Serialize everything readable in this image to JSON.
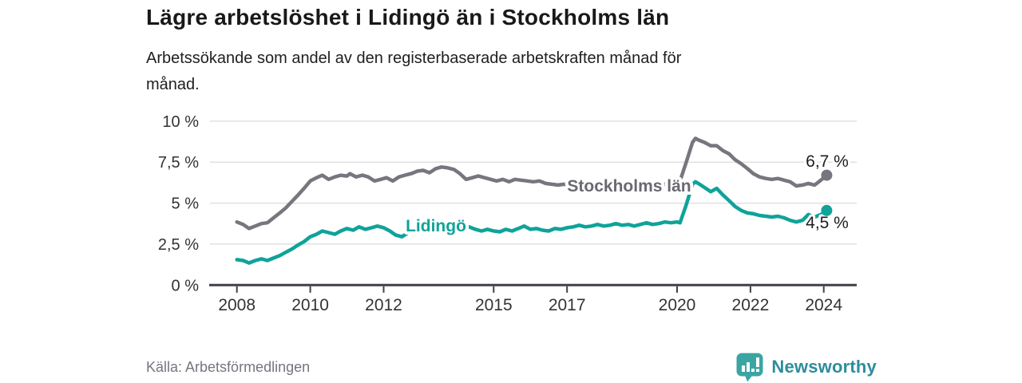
{
  "header": {
    "title": "Lägre arbetslöshet i Lidingö än i Stockholms län",
    "subtitle_lines": [
      "Arbetssökande som andel av den registerbaserade arbetskraften månad för",
      "månad."
    ]
  },
  "footer": {
    "source": "Källa: Arbetsförmedlingen",
    "brand": "Newsworthy",
    "logo_icon": "newsworthy-speech-bubble-bar-chart-icon",
    "brand_color": "#2e8d9b",
    "logo_color": "#3ba5a3"
  },
  "chart_data": {
    "type": "line",
    "title": "Lägre arbetslöshet i Lidingö än i Stockholms län",
    "xlabel": "",
    "ylabel": "",
    "legend_position": "inline",
    "grid": true,
    "x_axis": {
      "ticks": [
        2008,
        2010,
        2012,
        2015,
        2017,
        2020,
        2022,
        2024
      ],
      "range": [
        2007.25,
        2024.9
      ]
    },
    "y_axis": {
      "ticks": [
        0,
        2.5,
        5,
        7.5,
        10
      ],
      "tick_labels": [
        "0 %",
        "2,5 %",
        "5 %",
        "7,5 %",
        "10 %"
      ],
      "range": [
        0,
        10
      ]
    },
    "style": {
      "grid_color": "#e1e1e4",
      "axis_color": "#414046",
      "axis_text_color": "#333333",
      "value_label_color": "#1d1d1d"
    },
    "series": [
      {
        "id": "stockholms-lan",
        "name": "Stockholms län",
        "color": "#77767e",
        "label_color": "#6a6972",
        "end_label": "6,7 %",
        "points": [
          [
            2008,
            3.85
          ],
          [
            2008.17,
            3.7
          ],
          [
            2008.33,
            3.45
          ],
          [
            2008.5,
            3.6
          ],
          [
            2008.67,
            3.75
          ],
          [
            2008.83,
            3.8
          ],
          [
            2009,
            4.1
          ],
          [
            2009.17,
            4.4
          ],
          [
            2009.33,
            4.7
          ],
          [
            2009.5,
            5.1
          ],
          [
            2009.67,
            5.5
          ],
          [
            2009.83,
            5.9
          ],
          [
            2010,
            6.35
          ],
          [
            2010.17,
            6.55
          ],
          [
            2010.33,
            6.7
          ],
          [
            2010.5,
            6.45
          ],
          [
            2010.67,
            6.6
          ],
          [
            2010.83,
            6.7
          ],
          [
            2011,
            6.65
          ],
          [
            2011.08,
            6.8
          ],
          [
            2011.25,
            6.6
          ],
          [
            2011.42,
            6.7
          ],
          [
            2011.58,
            6.6
          ],
          [
            2011.75,
            6.35
          ],
          [
            2011.92,
            6.45
          ],
          [
            2012.08,
            6.55
          ],
          [
            2012.25,
            6.35
          ],
          [
            2012.42,
            6.6
          ],
          [
            2012.58,
            6.7
          ],
          [
            2012.75,
            6.8
          ],
          [
            2012.92,
            6.95
          ],
          [
            2013.08,
            7.0
          ],
          [
            2013.25,
            6.85
          ],
          [
            2013.42,
            7.1
          ],
          [
            2013.58,
            7.2
          ],
          [
            2013.75,
            7.15
          ],
          [
            2013.92,
            7.05
          ],
          [
            2014.08,
            6.8
          ],
          [
            2014.25,
            6.45
          ],
          [
            2014.42,
            6.55
          ],
          [
            2014.58,
            6.65
          ],
          [
            2014.75,
            6.55
          ],
          [
            2014.92,
            6.45
          ],
          [
            2015.08,
            6.35
          ],
          [
            2015.25,
            6.45
          ],
          [
            2015.42,
            6.3
          ],
          [
            2015.58,
            6.45
          ],
          [
            2015.75,
            6.4
          ],
          [
            2015.92,
            6.35
          ],
          [
            2016.08,
            6.3
          ],
          [
            2016.25,
            6.35
          ],
          [
            2016.42,
            6.2
          ],
          [
            2016.58,
            6.15
          ],
          [
            2016.75,
            6.1
          ],
          [
            2016.92,
            6.15
          ],
          [
            2017.08,
            6.1
          ],
          [
            2017.25,
            6.05
          ],
          [
            2017.42,
            6.0
          ],
          [
            2017.58,
            6.05
          ],
          [
            2017.75,
            6.0
          ],
          [
            2017.92,
            5.95
          ],
          [
            2018.08,
            5.9
          ],
          [
            2018.25,
            5.95
          ],
          [
            2018.42,
            5.85
          ],
          [
            2018.58,
            5.9
          ],
          [
            2018.75,
            5.85
          ],
          [
            2018.92,
            5.9
          ],
          [
            2019.08,
            5.85
          ],
          [
            2019.25,
            5.95
          ],
          [
            2019.42,
            6.0
          ],
          [
            2019.58,
            6.1
          ],
          [
            2019.75,
            6.2
          ],
          [
            2019.92,
            6.25
          ],
          [
            2020.08,
            6.35
          ],
          [
            2020.25,
            7.5
          ],
          [
            2020.42,
            8.7
          ],
          [
            2020.5,
            8.95
          ],
          [
            2020.58,
            8.85
          ],
          [
            2020.75,
            8.7
          ],
          [
            2020.92,
            8.5
          ],
          [
            2021.08,
            8.5
          ],
          [
            2021.25,
            8.2
          ],
          [
            2021.42,
            8.0
          ],
          [
            2021.58,
            7.65
          ],
          [
            2021.75,
            7.4
          ],
          [
            2021.92,
            7.1
          ],
          [
            2022.08,
            6.8
          ],
          [
            2022.25,
            6.6
          ],
          [
            2022.42,
            6.5
          ],
          [
            2022.58,
            6.45
          ],
          [
            2022.75,
            6.5
          ],
          [
            2022.92,
            6.4
          ],
          [
            2023.08,
            6.3
          ],
          [
            2023.25,
            6.05
          ],
          [
            2023.42,
            6.1
          ],
          [
            2023.58,
            6.2
          ],
          [
            2023.75,
            6.1
          ],
          [
            2023.92,
            6.4
          ],
          [
            2024.08,
            6.7
          ]
        ]
      },
      {
        "id": "lidingo",
        "name": "Lidingö",
        "color": "#0fa39a",
        "label_color": "#0fa39a",
        "end_label": "4,5 %",
        "points": [
          [
            2008,
            1.55
          ],
          [
            2008.17,
            1.5
          ],
          [
            2008.33,
            1.35
          ],
          [
            2008.5,
            1.5
          ],
          [
            2008.67,
            1.6
          ],
          [
            2008.83,
            1.5
          ],
          [
            2009,
            1.65
          ],
          [
            2009.17,
            1.8
          ],
          [
            2009.33,
            2.0
          ],
          [
            2009.5,
            2.2
          ],
          [
            2009.67,
            2.45
          ],
          [
            2009.83,
            2.65
          ],
          [
            2010,
            2.95
          ],
          [
            2010.17,
            3.1
          ],
          [
            2010.33,
            3.3
          ],
          [
            2010.5,
            3.2
          ],
          [
            2010.67,
            3.1
          ],
          [
            2010.83,
            3.3
          ],
          [
            2011,
            3.45
          ],
          [
            2011.17,
            3.35
          ],
          [
            2011.33,
            3.55
          ],
          [
            2011.5,
            3.4
          ],
          [
            2011.67,
            3.5
          ],
          [
            2011.83,
            3.6
          ],
          [
            2012,
            3.5
          ],
          [
            2012.17,
            3.3
          ],
          [
            2012.33,
            3.05
          ],
          [
            2012.5,
            2.95
          ],
          [
            2012.67,
            3.2
          ],
          [
            2012.83,
            3.3
          ],
          [
            2013,
            3.4
          ],
          [
            2013.17,
            3.35
          ],
          [
            2013.33,
            3.45
          ],
          [
            2013.5,
            3.4
          ],
          [
            2013.67,
            3.5
          ],
          [
            2013.83,
            3.45
          ],
          [
            2014,
            3.55
          ],
          [
            2014.17,
            3.5
          ],
          [
            2014.33,
            3.55
          ],
          [
            2014.5,
            3.4
          ],
          [
            2014.67,
            3.3
          ],
          [
            2014.83,
            3.4
          ],
          [
            2015,
            3.3
          ],
          [
            2015.17,
            3.25
          ],
          [
            2015.33,
            3.4
          ],
          [
            2015.5,
            3.3
          ],
          [
            2015.67,
            3.45
          ],
          [
            2015.83,
            3.6
          ],
          [
            2016,
            3.4
          ],
          [
            2016.17,
            3.45
          ],
          [
            2016.33,
            3.35
          ],
          [
            2016.5,
            3.3
          ],
          [
            2016.67,
            3.45
          ],
          [
            2016.83,
            3.4
          ],
          [
            2017,
            3.5
          ],
          [
            2017.17,
            3.55
          ],
          [
            2017.33,
            3.65
          ],
          [
            2017.5,
            3.55
          ],
          [
            2017.67,
            3.6
          ],
          [
            2017.83,
            3.7
          ],
          [
            2018,
            3.6
          ],
          [
            2018.17,
            3.65
          ],
          [
            2018.33,
            3.75
          ],
          [
            2018.5,
            3.65
          ],
          [
            2018.67,
            3.7
          ],
          [
            2018.83,
            3.6
          ],
          [
            2019,
            3.7
          ],
          [
            2019.17,
            3.8
          ],
          [
            2019.33,
            3.7
          ],
          [
            2019.5,
            3.75
          ],
          [
            2019.67,
            3.85
          ],
          [
            2019.83,
            3.8
          ],
          [
            2020,
            3.85
          ],
          [
            2020.08,
            3.8
          ],
          [
            2020.25,
            4.9
          ],
          [
            2020.42,
            6.15
          ],
          [
            2020.5,
            6.3
          ],
          [
            2020.58,
            6.2
          ],
          [
            2020.75,
            5.95
          ],
          [
            2020.92,
            5.7
          ],
          [
            2021.08,
            5.9
          ],
          [
            2021.25,
            5.5
          ],
          [
            2021.42,
            5.15
          ],
          [
            2021.58,
            4.8
          ],
          [
            2021.75,
            4.55
          ],
          [
            2021.92,
            4.4
          ],
          [
            2022.08,
            4.35
          ],
          [
            2022.25,
            4.25
          ],
          [
            2022.42,
            4.2
          ],
          [
            2022.58,
            4.15
          ],
          [
            2022.75,
            4.2
          ],
          [
            2022.92,
            4.1
          ],
          [
            2023.08,
            3.95
          ],
          [
            2023.25,
            3.85
          ],
          [
            2023.42,
            3.95
          ],
          [
            2023.58,
            4.3
          ],
          [
            2023.75,
            4.15
          ],
          [
            2023.92,
            4.3
          ],
          [
            2024,
            4.4
          ],
          [
            2024.08,
            4.55
          ]
        ]
      }
    ]
  }
}
